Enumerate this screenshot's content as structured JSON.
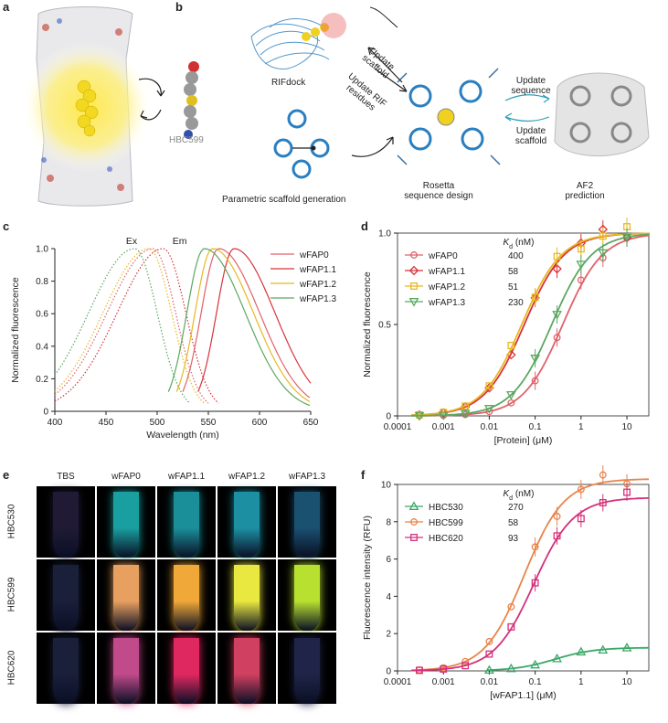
{
  "panels": {
    "a": "a",
    "b": "b",
    "c": "c",
    "d": "d",
    "e": "e",
    "f": "f"
  },
  "panel_a": {
    "molecule_label": "HBC599"
  },
  "panel_b": {
    "rifdock": "RIFdock",
    "update_scaffold_1": "Update scaffold",
    "update_rif": "Update RIF residues",
    "parametric": "Parametric scaffold generation",
    "rosetta_line1": "Rosetta",
    "rosetta_line2": "sequence design",
    "update_sequence": "Update sequence",
    "update_scaffold_2": "Update scaffold",
    "af2_line1": "AF2",
    "af2_line2": "prediction"
  },
  "colors": {
    "wFAP0": "#e0626a",
    "wFAP1.1": "#d8323a",
    "wFAP1.2": "#e8b820",
    "wFAP1.3": "#5aa860",
    "HBC530": "#3aa868",
    "HBC599": "#e8844a",
    "HBC620": "#d4307a"
  },
  "chart_data": [
    {
      "id": "c",
      "type": "line",
      "title": "",
      "xlabel": "Wavelength (nm)",
      "ylabel": "Normalized fluorescence",
      "xlim": [
        400,
        650
      ],
      "ylim": [
        0,
        1.0
      ],
      "xticks": [
        "400",
        "450",
        "500",
        "550",
        "600",
        "650"
      ],
      "yticks": [
        "0",
        "0.2",
        "0.4",
        "0.6",
        "0.8",
        "1.0"
      ],
      "annotations": [
        "Ex",
        "Em"
      ],
      "legend": [
        "wFAP0",
        "wFAP1.1",
        "wFAP1.2",
        "wFAP1.3"
      ],
      "series": [
        {
          "name": "wFAP0",
          "ex_peak": 496,
          "em_peak": 560
        },
        {
          "name": "wFAP1.1",
          "ex_peak": 506,
          "em_peak": 575
        },
        {
          "name": "wFAP1.2",
          "ex_peak": 492,
          "em_peak": 554
        },
        {
          "name": "wFAP1.3",
          "ex_peak": 478,
          "em_peak": 546
        }
      ]
    },
    {
      "id": "d",
      "type": "scatter",
      "xlabel": "[Protein] (μM)",
      "ylabel": "Normalized fluorescence",
      "xscale": "log",
      "xlim": [
        0.0001,
        30
      ],
      "ylim": [
        0,
        1.0
      ],
      "xticks": [
        "0.0001",
        "0.001",
        "0.01",
        "0.1",
        "1",
        "10"
      ],
      "yticks": [
        "0",
        "0.5",
        "1.0"
      ],
      "kd_header": "K",
      "kd_sub": "d",
      "kd_unit": " (nM)",
      "series": [
        {
          "name": "wFAP0",
          "kd_label": "400",
          "kd_um": 0.4,
          "marker": "circle"
        },
        {
          "name": "wFAP1.1",
          "kd_label": "58",
          "kd_um": 0.058,
          "marker": "diamond"
        },
        {
          "name": "wFAP1.2",
          "kd_label": "51",
          "kd_um": 0.051,
          "marker": "square"
        },
        {
          "name": "wFAP1.3",
          "kd_label": "230",
          "kd_um": 0.23,
          "marker": "triangle-down"
        }
      ]
    },
    {
      "id": "f",
      "type": "scatter",
      "xlabel": "[wFAP1.1] (μM)",
      "ylabel": "Fluorescence intensity (RFU)",
      "xscale": "log",
      "xlim": [
        0.0001,
        30
      ],
      "ylim": [
        0,
        10
      ],
      "xticks": [
        "0.0001",
        "0.001",
        "0.01",
        "0.1",
        "1",
        "10"
      ],
      "yticks": [
        "0",
        "2",
        "4",
        "6",
        "8",
        "10"
      ],
      "kd_header": "K",
      "kd_sub": "d",
      "kd_unit": " (nM)",
      "series": [
        {
          "name": "HBC530",
          "kd_label": "270",
          "kd_um": 0.27,
          "max": 1.25,
          "marker": "triangle-up"
        },
        {
          "name": "HBC599",
          "kd_label": "58",
          "kd_um": 0.058,
          "max": 10.3,
          "marker": "circle"
        },
        {
          "name": "HBC620",
          "kd_label": "93",
          "kd_um": 0.093,
          "max": 9.3,
          "marker": "square"
        }
      ]
    }
  ],
  "panel_e": {
    "columns": [
      "TBS",
      "wFAP0",
      "wFAP1.1",
      "wFAP1.2",
      "wFAP1.3"
    ],
    "rows": [
      "HBC530",
      "HBC599",
      "HBC620"
    ]
  }
}
